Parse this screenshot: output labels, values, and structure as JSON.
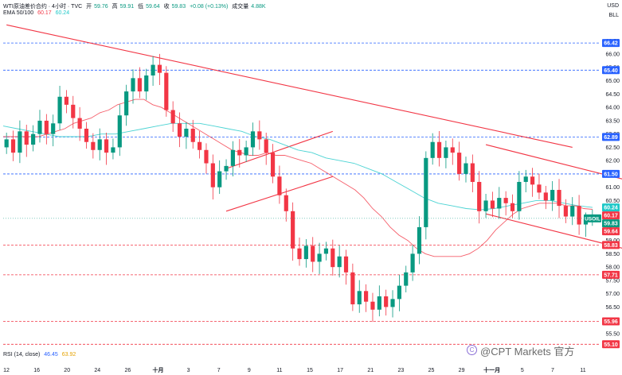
{
  "header": {
    "symbol_line": "WTI原油差价合约 · 4小时 · TVC",
    "open_label": "开",
    "open_value": "59.76",
    "high_label": "高",
    "high_value": "59.91",
    "low_label": "低",
    "low_value": "59.64",
    "close_label": "收",
    "close_value": "59.83",
    "change_value": "+0.08 (+0.13%)",
    "volume_label": "成交量",
    "volume_value": "4.88K",
    "ema_label": "EMA 50/100",
    "ema50_value": "60.17",
    "ema100_value": "60.24"
  },
  "rsi": {
    "label": "RSI (14, close)",
    "value1": "46.45",
    "value2": "63.92"
  },
  "axis": {
    "currency": "USD",
    "unit": "BLL"
  },
  "watermark": {
    "text": "@CPT Markets 官方"
  },
  "colors": {
    "up": "#089981",
    "down": "#f23645",
    "ema50": "#f23645",
    "ema100": "#1ec8c8",
    "blue_level": "#2962ff",
    "red_level": "#f23645",
    "trendline": "#f23645"
  },
  "chart_data": {
    "type": "candlestick",
    "ylim": [
      54.9,
      67.2
    ],
    "y_ticks": [
      55.5,
      56.0,
      56.5,
      57.0,
      57.5,
      58.0,
      58.5,
      59.0,
      59.5,
      60.0,
      60.5,
      61.0,
      61.5,
      62.0,
      62.5,
      63.0,
      63.5,
      64.0,
      64.5,
      65.0,
      65.5,
      66.0,
      66.5
    ],
    "x_ticks": [
      "12",
      "16",
      "20",
      "24",
      "26",
      "十月",
      "3",
      "7",
      "9",
      "11",
      "15",
      "17",
      "21",
      "23",
      "25",
      "29",
      "十一月",
      "5",
      "7",
      "11"
    ],
    "x_ticks_bold": [
      "十月",
      "十一月"
    ],
    "closes": [
      62.8,
      62.3,
      63.1,
      62.6,
      63.0,
      63.5,
      63.0,
      63.4,
      64.4,
      64.1,
      63.6,
      63.2,
      62.7,
      62.4,
      62.8,
      62.3,
      62.5,
      63.7,
      64.6,
      65.1,
      64.6,
      65.2,
      65.6,
      65.3,
      63.9,
      63.4,
      62.9,
      63.2,
      62.7,
      62.4,
      61.9,
      61.0,
      61.6,
      61.8,
      62.4,
      62.2,
      62.5,
      63.1,
      62.8,
      62.3,
      61.4,
      60.7,
      60.1,
      58.7,
      58.3,
      58.8,
      58.2,
      58.5,
      58.7,
      58.0,
      58.4,
      57.8,
      56.6,
      57.1,
      56.7,
      56.4,
      56.9,
      56.5,
      56.8,
      57.3,
      57.8,
      58.5,
      59.5,
      62.1,
      62.7,
      62.1,
      62.5,
      62.3,
      61.5,
      61.9,
      61.2,
      60.1,
      60.5,
      60.2,
      60.6,
      60.4,
      60.1,
      61.2,
      61.4,
      61.1,
      60.8,
      60.5,
      60.9,
      60.3,
      59.9,
      60.3,
      59.6,
      59.8,
      59.83
    ],
    "ema50": [
      62.9,
      62.9,
      62.9,
      62.9,
      62.9,
      63.0,
      63.1,
      63.2,
      63.4,
      63.5,
      63.6,
      63.8,
      63.9,
      64.1,
      64.2,
      64.3,
      64.3,
      64.1,
      64.0,
      63.8,
      63.6,
      63.4,
      63.2,
      63.0,
      62.8,
      62.6,
      62.4,
      62.3,
      62.2,
      62.2,
      62.3,
      62.2,
      62.2,
      62.1,
      62.0,
      61.9,
      61.7,
      61.5,
      61.3,
      61.1,
      60.9,
      60.6,
      60.2,
      59.9,
      59.5,
      59.2,
      59.0,
      58.7,
      58.5,
      58.4,
      58.4,
      58.4,
      58.4,
      58.5,
      58.7,
      59.0,
      59.4,
      59.7,
      60.0,
      60.2,
      60.3,
      60.4,
      60.4,
      60.4,
      60.3,
      60.3,
      60.2,
      60.17
    ],
    "ema100": [
      63.3,
      63.2,
      63.1,
      63.0,
      62.9,
      62.9,
      62.9,
      63.0,
      63.0,
      63.1,
      63.2,
      63.3,
      63.4,
      63.4,
      63.4,
      63.3,
      63.2,
      63.1,
      62.9,
      62.8,
      62.6,
      62.4,
      62.3,
      62.1,
      62.0,
      61.9,
      61.7,
      61.5,
      61.2,
      60.9,
      60.6,
      60.4,
      60.3,
      60.2,
      60.15,
      60.2,
      60.3,
      60.4,
      60.5,
      60.5,
      60.4,
      60.3,
      60.24
    ],
    "levels_blue": [
      66.42,
      65.4,
      62.89,
      61.5
    ],
    "levels_red": [
      58.83,
      57.71,
      55.96,
      55.1
    ],
    "price_badges": [
      {
        "text": "66.42",
        "value": 66.42,
        "bg": "#2962ff",
        "fg": "#ffffff"
      },
      {
        "text": "65.40",
        "value": 65.4,
        "bg": "#2962ff",
        "fg": "#ffffff"
      },
      {
        "text": "62.89",
        "value": 62.89,
        "bg": "#2962ff",
        "fg": "#ffffff"
      },
      {
        "text": "61.50",
        "value": 61.5,
        "bg": "#2962ff",
        "fg": "#ffffff"
      },
      {
        "text": "60.24",
        "value": 60.24,
        "bg": "#1ec8c8",
        "fg": "#ffffff"
      },
      {
        "text": "60.17",
        "value": 60.17,
        "bg": "#f23645",
        "fg": "#ffffff"
      },
      {
        "text": "59.83",
        "value": 59.83,
        "bg": "#089981",
        "fg": "#ffffff"
      },
      {
        "text": "59.64",
        "value": 59.64,
        "bg": "#f23645",
        "fg": "#ffffff"
      },
      {
        "text": "58.83",
        "value": 58.83,
        "bg": "#f23645",
        "fg": "#ffffff"
      },
      {
        "text": "57.71",
        "value": 57.71,
        "bg": "#f23645",
        "fg": "#ffffff"
      },
      {
        "text": "55.96",
        "value": 55.96,
        "bg": "#f23645",
        "fg": "#ffffff"
      },
      {
        "text": "55.10",
        "value": 55.1,
        "bg": "#f23645",
        "fg": "#ffffff"
      }
    ],
    "symbol_tag": "USOIL",
    "trendlines": [
      {
        "from_index": 0,
        "from_value": 67.1,
        "to_index": 85,
        "to_value": 62.5
      },
      {
        "from_index": 33,
        "from_value": 60.1,
        "to_index": 49,
        "to_value": 61.4
      },
      {
        "from_index": 33,
        "from_value": 61.7,
        "to_index": 49,
        "to_value": 63.1
      },
      {
        "from_index": 72,
        "from_value": 62.6,
        "to_index": 99,
        "to_value": 60.9
      },
      {
        "from_index": 72,
        "from_value": 60.0,
        "to_index": 99,
        "to_value": 58.3
      }
    ]
  }
}
